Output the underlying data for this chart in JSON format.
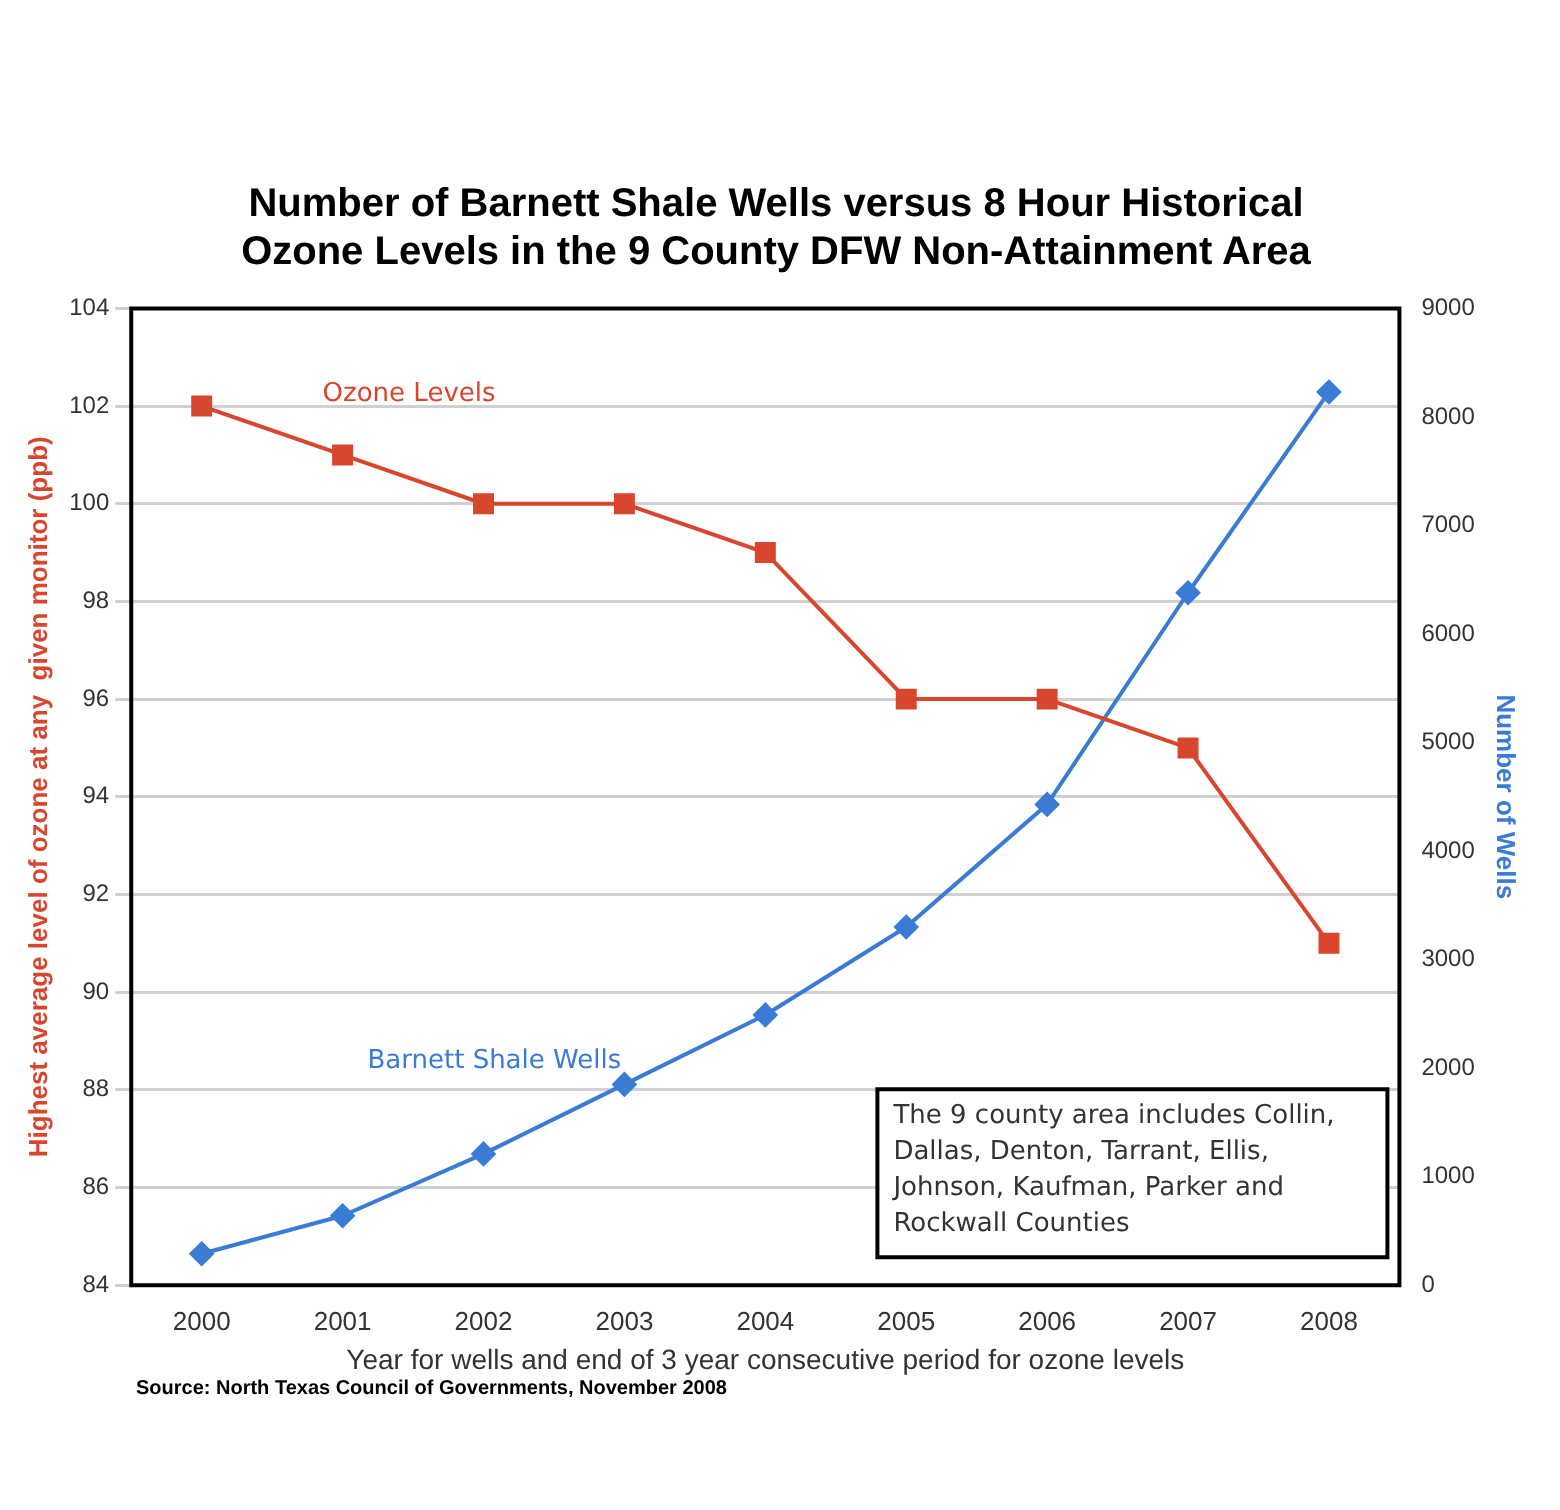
{
  "chart_data": {
    "type": "line",
    "title": "Number of Barnett Shale Wells versus 8 Hour Historical Ozone Levels in the 9 County DFW Non-Attainment Area",
    "xlabel": "Year for wells and end of 3 year consecutive period for ozone levels",
    "ylabel": "Highest average level of ozone at any  given monitor (ppb)",
    "y2label": "Number of Wells",
    "categories": [
      "2000",
      "2001",
      "2002",
      "2003",
      "2004",
      "2005",
      "2006",
      "2007",
      "2008"
    ],
    "series": [
      {
        "name": "Ozone Levels",
        "color": "#d9462e",
        "marker": "square",
        "values": [
          102,
          101,
          100,
          100,
          99,
          96,
          96,
          95,
          91
        ]
      },
      {
        "name": "Barnett Shale Wells",
        "color": "#3a7bd5",
        "marker": "diamond",
        "axis": "y2",
        "values": [
          290,
          640,
          1210,
          1850,
          2490,
          3300,
          4430,
          6380,
          8230
        ]
      }
    ],
    "ylim": [
      84,
      104
    ],
    "yticks": [
      84,
      86,
      88,
      90,
      92,
      94,
      96,
      98,
      100,
      102,
      104
    ],
    "y2lim": [
      0,
      9000
    ],
    "y2ticks": [
      0,
      1000,
      2000,
      3000,
      4000,
      5000,
      6000,
      7000,
      8000,
      9000
    ],
    "grid": "y",
    "legend": false,
    "annotations": [
      "The 9 county area includes Collin, Dallas, Denton, Tarrant, Ellis, Johnson, Kaufman, Parker and Rockwall Counties",
      "Source:  North Texas Council of Governments, November 2008"
    ]
  }
}
